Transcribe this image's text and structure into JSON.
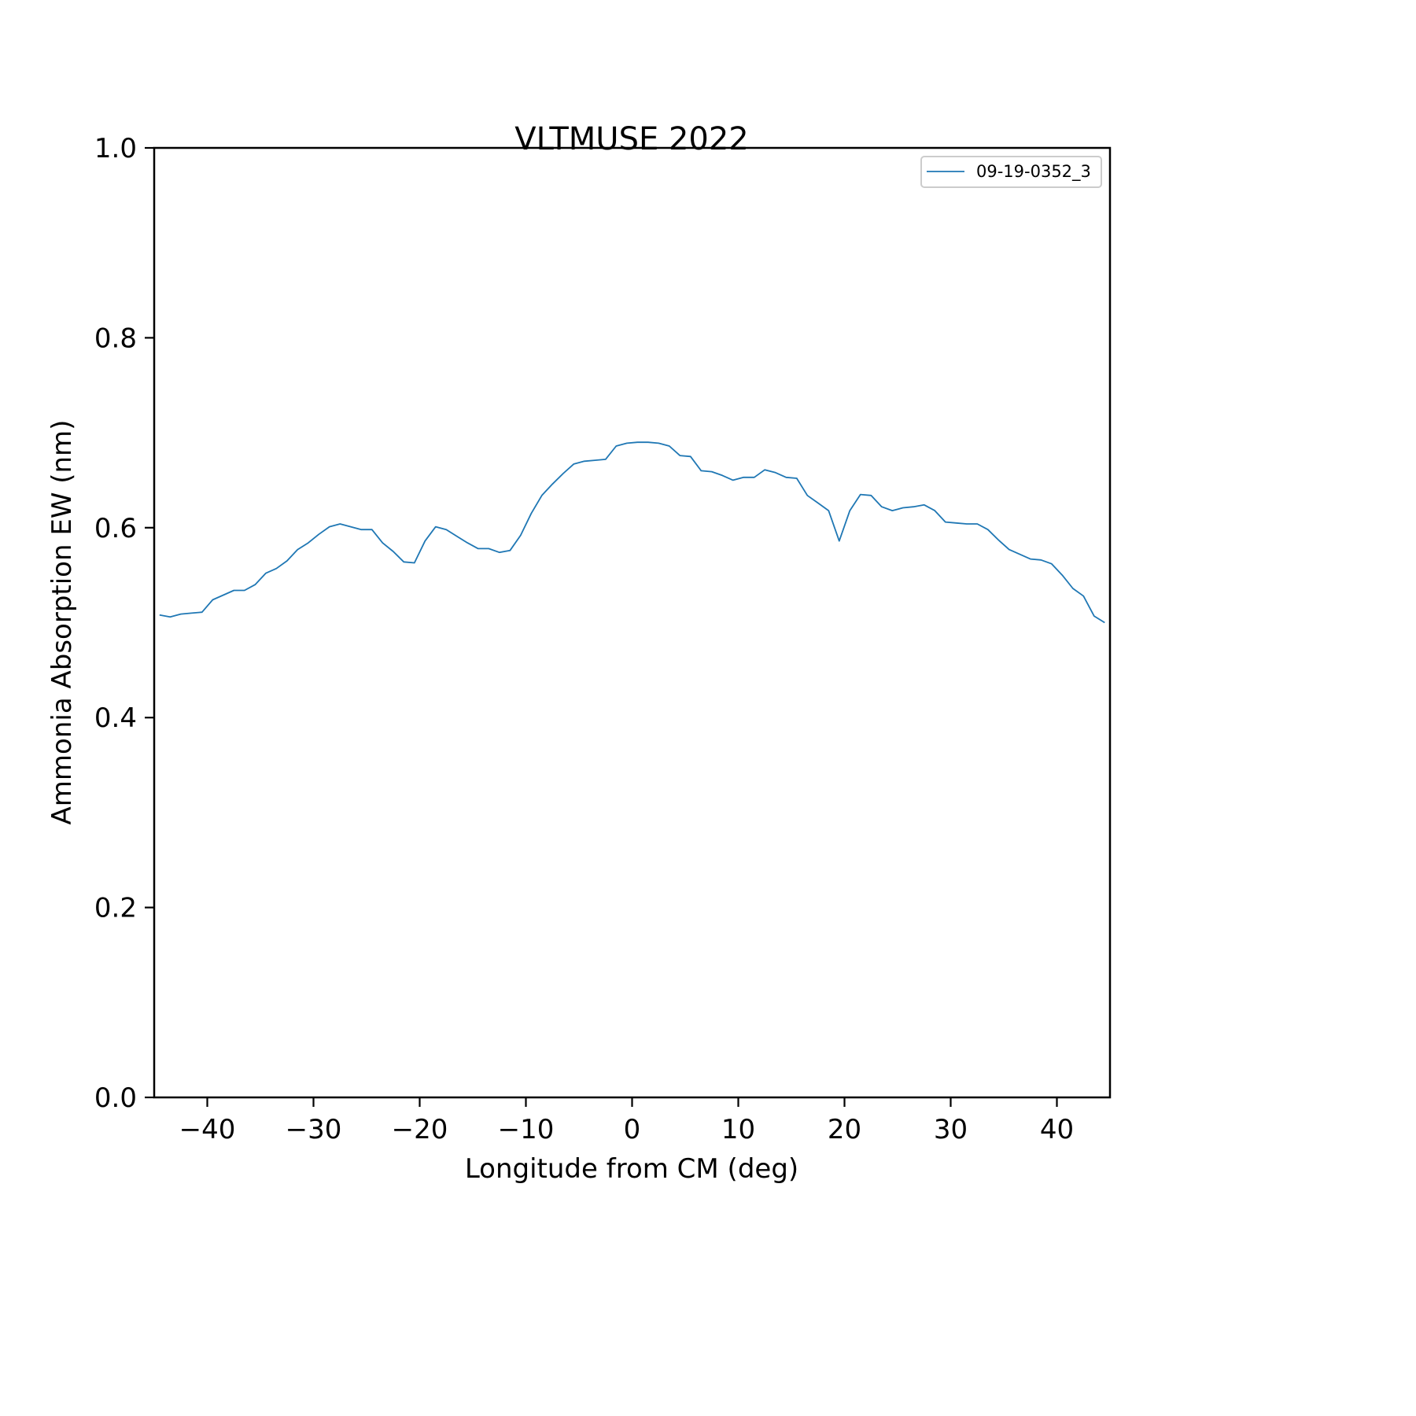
{
  "chart_data": {
    "type": "line",
    "title": "VLTMUSE 2022",
    "xlabel": "Longitude from CM (deg)",
    "ylabel": "Ammonia Absorption EW (nm)",
    "xlim": [
      -45,
      45
    ],
    "ylim": [
      0.0,
      1.0
    ],
    "xticks": [
      -40,
      -30,
      -20,
      -10,
      0,
      10,
      20,
      30,
      40
    ],
    "xtick_labels": [
      "−40",
      "−30",
      "−20",
      "−10",
      "0",
      "10",
      "20",
      "30",
      "40"
    ],
    "yticks": [
      0.0,
      0.2,
      0.4,
      0.6,
      0.8,
      1.0
    ],
    "ytick_labels": [
      "0.0",
      "0.2",
      "0.4",
      "0.6",
      "0.8",
      "1.0"
    ],
    "grid": false,
    "legend_position": "top-right",
    "colors": {
      "series": "#1f77b4",
      "axes": "#000000"
    },
    "series": [
      {
        "name": "09-19-0352_3",
        "x": [
          -44.5,
          -43.5,
          -42.5,
          -41.5,
          -40.5,
          -39.5,
          -38.5,
          -37.5,
          -36.5,
          -35.5,
          -34.5,
          -33.5,
          -32.5,
          -31.5,
          -30.5,
          -29.5,
          -28.5,
          -27.5,
          -26.5,
          -25.5,
          -24.5,
          -23.5,
          -22.5,
          -21.5,
          -20.5,
          -19.5,
          -18.5,
          -17.5,
          -16.5,
          -15.5,
          -14.5,
          -13.5,
          -12.5,
          -11.5,
          -10.5,
          -9.5,
          -8.5,
          -7.5,
          -6.5,
          -5.5,
          -4.5,
          -3.5,
          -2.5,
          -1.5,
          -0.5,
          0.5,
          1.5,
          2.5,
          3.5,
          4.5,
          5.5,
          6.5,
          7.5,
          8.5,
          9.5,
          10.5,
          11.5,
          12.5,
          13.5,
          14.5,
          15.5,
          16.5,
          17.5,
          18.5,
          19.5,
          20.5,
          21.5,
          22.5,
          23.5,
          24.5,
          25.5,
          26.5,
          27.5,
          28.5,
          29.5,
          30.5,
          31.5,
          32.5,
          33.5,
          34.5,
          35.5,
          36.5,
          37.5,
          38.5,
          39.5,
          40.5,
          41.5,
          42.5,
          43.5,
          44.5
        ],
        "y": [
          0.508,
          0.506,
          0.509,
          0.51,
          0.511,
          0.524,
          0.529,
          0.534,
          0.534,
          0.54,
          0.552,
          0.557,
          0.565,
          0.577,
          0.584,
          0.593,
          0.601,
          0.604,
          0.601,
          0.598,
          0.598,
          0.584,
          0.575,
          0.564,
          0.563,
          0.586,
          0.601,
          0.598,
          0.591,
          0.584,
          0.578,
          0.578,
          0.574,
          0.576,
          0.592,
          0.615,
          0.634,
          0.646,
          0.657,
          0.667,
          0.67,
          0.671,
          0.672,
          0.686,
          0.689,
          0.69,
          0.69,
          0.689,
          0.686,
          0.676,
          0.675,
          0.66,
          0.659,
          0.655,
          0.65,
          0.653,
          0.653,
          0.661,
          0.658,
          0.653,
          0.652,
          0.634,
          0.626,
          0.618,
          0.586,
          0.618,
          0.635,
          0.634,
          0.622,
          0.618,
          0.621,
          0.622,
          0.624,
          0.618,
          0.606,
          0.605,
          0.604,
          0.604,
          0.598,
          0.587,
          0.577,
          0.572,
          0.567,
          0.566,
          0.562,
          0.55,
          0.536,
          0.528,
          0.507,
          0.5
        ]
      }
    ]
  }
}
